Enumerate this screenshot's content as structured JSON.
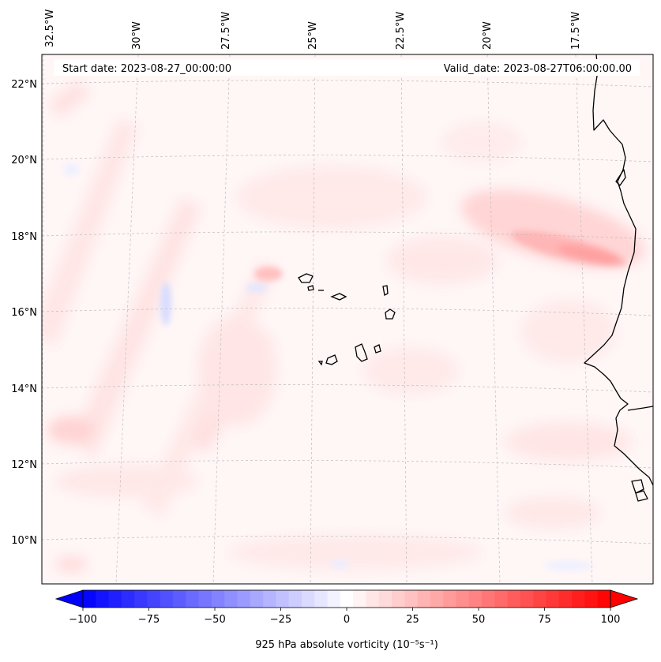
{
  "map": {
    "start_date_label": "Start date: 2023-08-27_00:00:00",
    "valid_date_label": "Valid_date: 2023-08-27T06:00:00.00",
    "lon_labels": [
      "32.5°W",
      "30°W",
      "27.5°W",
      "25°W",
      "22.5°W",
      "20°W",
      "17.5°W"
    ],
    "lat_labels": [
      "22°N",
      "20°N",
      "18°N",
      "16°N",
      "14°N",
      "12°N",
      "10°N"
    ],
    "gridlines": true,
    "colors": {
      "negative": "#0000ff",
      "zero": "#ffffff",
      "positive": "#ff0000",
      "coast": "#000000"
    }
  },
  "colorbar": {
    "label": "925 hPa absolute vorticity (10⁻⁵s⁻¹)",
    "ticks": [
      "−100",
      "−75",
      "−50",
      "−25",
      "0",
      "25",
      "50",
      "75",
      "100"
    ],
    "range": [
      -100,
      100
    ],
    "levels": 41,
    "extend": "both"
  }
}
